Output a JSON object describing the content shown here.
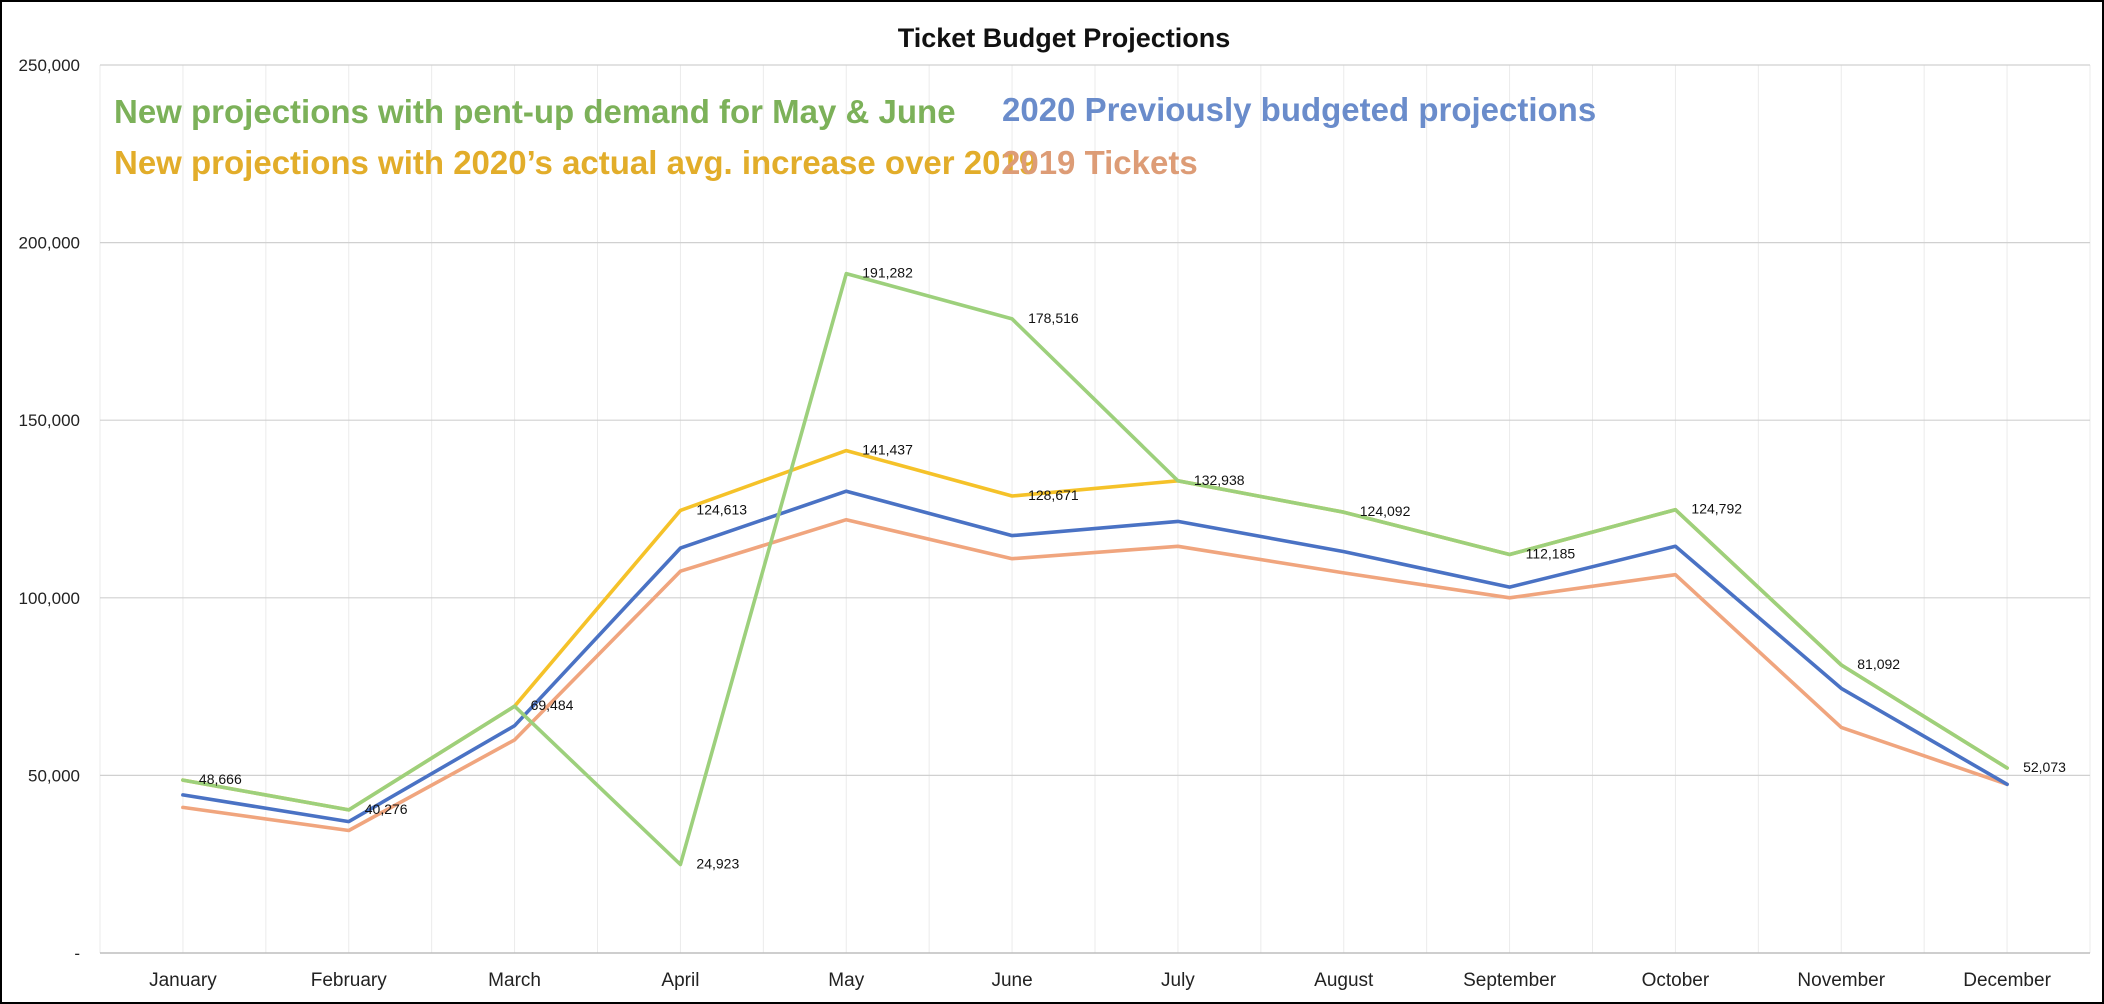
{
  "chart_data": {
    "type": "line",
    "title": "Ticket Budget Projections",
    "xlabel": "",
    "ylabel": "",
    "categories": [
      "January",
      "February",
      "March",
      "April",
      "May",
      "June",
      "July",
      "August",
      "September",
      "October",
      "November",
      "December"
    ],
    "ylim": [
      0,
      250000
    ],
    "y_ticks": [
      0,
      50000,
      100000,
      150000,
      200000,
      250000
    ],
    "y_tick_labels": [
      "-",
      "50,000",
      "100,000",
      "150,000",
      "200,000",
      "250,000"
    ],
    "grid": "on",
    "legend_position": "top-left",
    "series": [
      {
        "name": "2019 Tickets",
        "color": "#f0a57e",
        "values": [
          41000,
          34500,
          60000,
          107500,
          122000,
          111000,
          114500,
          107000,
          100000,
          106500,
          63500,
          47500
        ]
      },
      {
        "name": "2020 Previously budgeted projections",
        "color": "#4a72c4",
        "values": [
          44500,
          37000,
          64000,
          114000,
          130000,
          117500,
          121500,
          113000,
          103000,
          114500,
          74500,
          47500
        ]
      },
      {
        "name": "New projections with 2020’s actual avg. increase over 2019",
        "color": "#f5c229",
        "values": [
          48666,
          40276,
          69484,
          124613,
          141437,
          128671,
          132938,
          124092,
          112185,
          124792,
          81092,
          52073
        ]
      },
      {
        "name": "New projections with pent-up demand for May & June",
        "color": "#9dd07c",
        "values": [
          48666,
          40276,
          69484,
          24923,
          191282,
          178516,
          132938,
          124092,
          112185,
          124792,
          81092,
          52073
        ]
      }
    ],
    "data_labels": [
      {
        "category": "January",
        "value": 48666,
        "text": "48,666"
      },
      {
        "category": "February",
        "value": 40276,
        "text": "40,276"
      },
      {
        "category": "March",
        "value": 69484,
        "text": "69,484"
      },
      {
        "category": "April",
        "value": 124613,
        "text": "124,613"
      },
      {
        "category": "April",
        "value": 24923,
        "text": "24,923"
      },
      {
        "category": "May",
        "value": 191282,
        "text": "191,282"
      },
      {
        "category": "May",
        "value": 141437,
        "text": "141,437"
      },
      {
        "category": "June",
        "value": 178516,
        "text": "178,516"
      },
      {
        "category": "June",
        "value": 128671,
        "text": "128,671"
      },
      {
        "category": "July",
        "value": 132938,
        "text": "132,938"
      },
      {
        "category": "August",
        "value": 124092,
        "text": "124,092"
      },
      {
        "category": "September",
        "value": 112185,
        "text": "112,185"
      },
      {
        "category": "October",
        "value": 124792,
        "text": "124,792"
      },
      {
        "category": "November",
        "value": 81092,
        "text": "81,092"
      },
      {
        "category": "December",
        "value": 52073,
        "text": "52,073"
      }
    ],
    "legend": [
      {
        "text": "New projections with pent-up demand for May & June",
        "color": "#7cb159"
      },
      {
        "text": "New projections with 2020’s actual avg. increase over 2019",
        "color": "#e2ad2a"
      },
      {
        "text": "2020 Previously budgeted projections",
        "color": "#6a8ccb"
      },
      {
        "text": "2019 Tickets",
        "color": "#dd9c76"
      }
    ]
  }
}
